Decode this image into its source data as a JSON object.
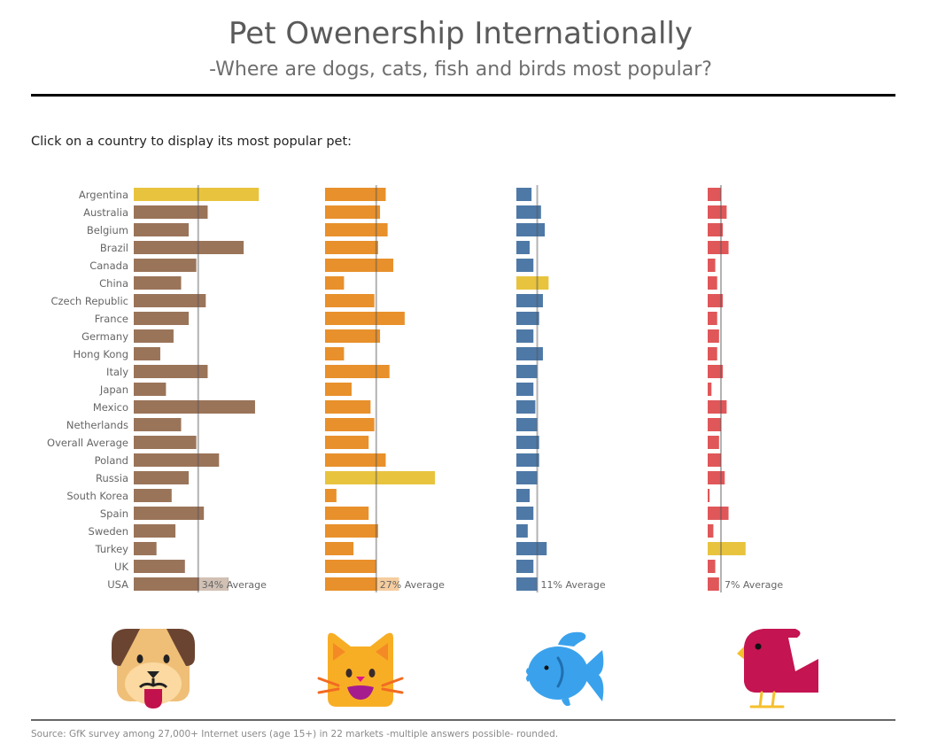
{
  "header": {
    "title": "Pet Owenership Internationally",
    "subtitle": "-Where are dogs, cats, fish and birds most popular?"
  },
  "instruction": "Click on a country to display its most popular pet:",
  "footer": {
    "source": "Source: GfK survey among 27,000+ Internet users (age 15+) in 22 markets -multiple answers possible- rounded."
  },
  "icons": [
    "dog-icon",
    "cat-icon",
    "fish-icon",
    "bird-icon"
  ],
  "colors": {
    "dog": "#9a7459",
    "cat": "#e8902b",
    "fish": "#4e79a7",
    "bird": "#e05759",
    "highlight": "#e8c43e",
    "average_line": "#888888",
    "label": "#666666"
  },
  "chart_data": {
    "type": "bar",
    "orientation": "horizontal",
    "title": "Pet Owenership Internationally",
    "subtitle": "-Where are dogs, cats, fish and birds most popular?",
    "unit": "%",
    "categories": [
      "Argentina",
      "Australia",
      "Belgium",
      "Brazil",
      "Canada",
      "China",
      "Czech Republic",
      "France",
      "Germany",
      "Hong Kong",
      "Italy",
      "Japan",
      "Mexico",
      "Netherlands",
      "Overall Average",
      "Poland",
      "Russia",
      "South Korea",
      "Spain",
      "Sweden",
      "Turkey",
      "UK",
      "USA"
    ],
    "series": [
      {
        "name": "Dogs",
        "color_key": "dog",
        "average": 34,
        "average_label": "34% Average",
        "values": [
          66,
          39,
          29,
          58,
          33,
          25,
          38,
          29,
          21,
          14,
          39,
          17,
          64,
          25,
          33,
          45,
          29,
          20,
          37,
          22,
          12,
          27,
          50
        ],
        "highlight": [
          "Argentina"
        ]
      },
      {
        "name": "Cats",
        "color_key": "cat",
        "average": 27,
        "average_label": "27% Average",
        "values": [
          32,
          29,
          33,
          28,
          36,
          10,
          26,
          42,
          29,
          10,
          34,
          14,
          24,
          26,
          23,
          32,
          58,
          6,
          23,
          28,
          15,
          27,
          39
        ],
        "highlight": [
          "Russia"
        ]
      },
      {
        "name": "Fish",
        "color_key": "fish",
        "average": 11,
        "average_label": "11% Average",
        "values": [
          8,
          13,
          15,
          7,
          9,
          17,
          14,
          12,
          9,
          14,
          11,
          9,
          10,
          11,
          12,
          12,
          11,
          7,
          9,
          6,
          16,
          9,
          11
        ],
        "highlight": [
          "China"
        ]
      },
      {
        "name": "Birds",
        "color_key": "bird",
        "average": 7,
        "average_label": "7% Average",
        "values": [
          7,
          10,
          8,
          11,
          4,
          5,
          8,
          5,
          6,
          5,
          8,
          2,
          10,
          7,
          6,
          7,
          9,
          1,
          11,
          3,
          20,
          4,
          6
        ],
        "highlight": [
          "Turkey"
        ]
      }
    ],
    "xlim": [
      0,
      70
    ],
    "grid": false,
    "legend": "none (pet icons below each column)",
    "axis_labels": {
      "x": "",
      "y": ""
    }
  }
}
